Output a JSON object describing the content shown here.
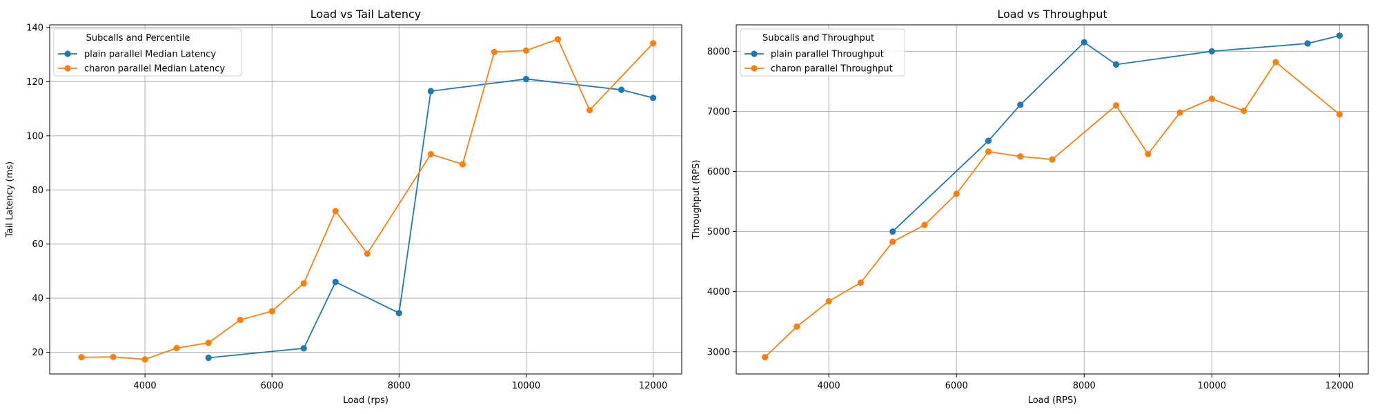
{
  "chart_data": [
    {
      "type": "line",
      "title": "Load vs Tail Latency",
      "xlabel": "Load (rps)",
      "ylabel": "Tail Latency (ms)",
      "xlim": [
        2500,
        12450
      ],
      "ylim": [
        12,
        141
      ],
      "xticks": [
        4000,
        6000,
        8000,
        10000,
        12000
      ],
      "yticks": [
        20,
        40,
        60,
        80,
        100,
        120,
        140
      ],
      "grid": true,
      "legend_position": "upper-left",
      "legend_title": "Subcalls and Percentile",
      "series": [
        {
          "name": "plain parallel Median Latency",
          "color": "#1f77b4",
          "x": [
            5000,
            6500,
            7000,
            8000,
            8500,
            10000,
            11500,
            12000
          ],
          "y": [
            18,
            21.5,
            46,
            34.5,
            116.5,
            121,
            117,
            114
          ]
        },
        {
          "name": "charon parallel Median Latency",
          "color": "#ff7f0e",
          "x": [
            3000,
            3500,
            4000,
            4500,
            5000,
            5500,
            6000,
            6500,
            7000,
            7500,
            8500,
            9000,
            9500,
            10000,
            10500,
            11000,
            12000
          ],
          "y": [
            18.2,
            18.3,
            17.4,
            21.6,
            23.5,
            32,
            35.2,
            45.5,
            72.2,
            56.5,
            93.2,
            89.5,
            131,
            131.5,
            135.7,
            109.5,
            134.2
          ]
        }
      ]
    },
    {
      "type": "line",
      "title": "Load vs Throughput",
      "xlabel": "Load (RPS)",
      "ylabel": "Throughput (RPS)",
      "xlim": [
        2550,
        12450
      ],
      "ylim": [
        2630,
        8440
      ],
      "xticks": [
        4000,
        6000,
        8000,
        10000,
        12000
      ],
      "yticks": [
        3000,
        4000,
        5000,
        6000,
        7000,
        8000
      ],
      "grid": true,
      "legend_position": "upper-left",
      "legend_title": "Subcalls and Throughput",
      "series": [
        {
          "name": "plain parallel Throughput",
          "color": "#1f77b4",
          "x": [
            5000,
            6500,
            7000,
            8000,
            8500,
            10000,
            11500,
            12000
          ],
          "y": [
            5000,
            6510,
            7110,
            8150,
            7780,
            8000,
            8130,
            8260
          ]
        },
        {
          "name": "charon parallel Throughput",
          "color": "#ff7f0e",
          "x": [
            3000,
            3500,
            4000,
            4500,
            5000,
            5500,
            6000,
            6500,
            7000,
            7500,
            8500,
            9000,
            9500,
            10000,
            10500,
            11000,
            12000
          ],
          "y": [
            2910,
            3420,
            3840,
            4150,
            4830,
            5110,
            5630,
            6330,
            6250,
            6200,
            7100,
            6290,
            6980,
            7210,
            7010,
            7820,
            6950
          ]
        }
      ]
    }
  ]
}
